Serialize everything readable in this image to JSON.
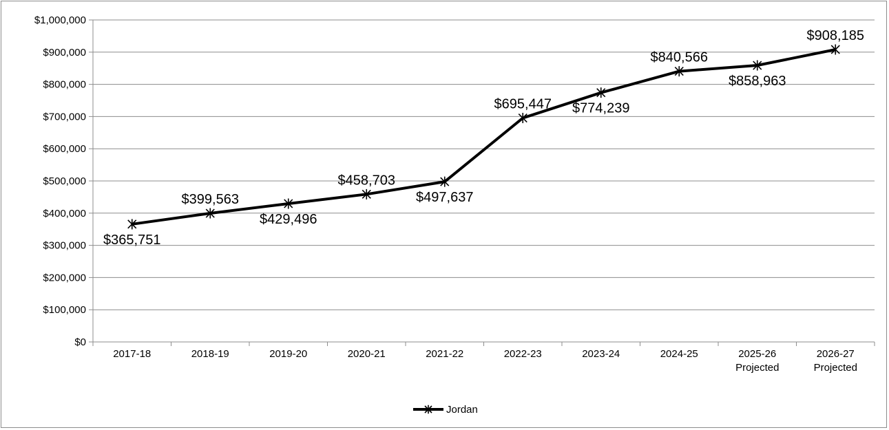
{
  "chart_data": {
    "type": "line",
    "categories": [
      [
        "2017-18"
      ],
      [
        "2018-19"
      ],
      [
        "2019-20"
      ],
      [
        "2020-21"
      ],
      [
        "2021-22"
      ],
      [
        "2022-23"
      ],
      [
        "2023-24"
      ],
      [
        "2024-25"
      ],
      [
        "2025-26",
        "Projected"
      ],
      [
        "2026-27",
        "Projected"
      ]
    ],
    "series": [
      {
        "name": "Jordan",
        "color": "#000000",
        "marker": "asterisk",
        "values": [
          365751,
          399563,
          429496,
          458703,
          497637,
          695447,
          774239,
          840566,
          858963,
          908185
        ],
        "data_labels": [
          "$365,751",
          "$399,563",
          "$429,496",
          "$458,703",
          "$497,637",
          "$695,447",
          "$774,239",
          "$840,566",
          "$858,963",
          "$908,185"
        ],
        "label_positions": [
          "below",
          "above",
          "below",
          "above",
          "below",
          "above",
          "below",
          "above",
          "below",
          "above"
        ]
      }
    ],
    "ylim": [
      0,
      1000000
    ],
    "ytick_step": 100000,
    "ytick_labels": [
      "$0",
      "$100,000",
      "$200,000",
      "$300,000",
      "$400,000",
      "$500,000",
      "$600,000",
      "$700,000",
      "$800,000",
      "$900,000",
      "$1,000,000"
    ],
    "grid": true,
    "legend": "bottom-center",
    "title": "",
    "xlabel": "",
    "ylabel": ""
  }
}
